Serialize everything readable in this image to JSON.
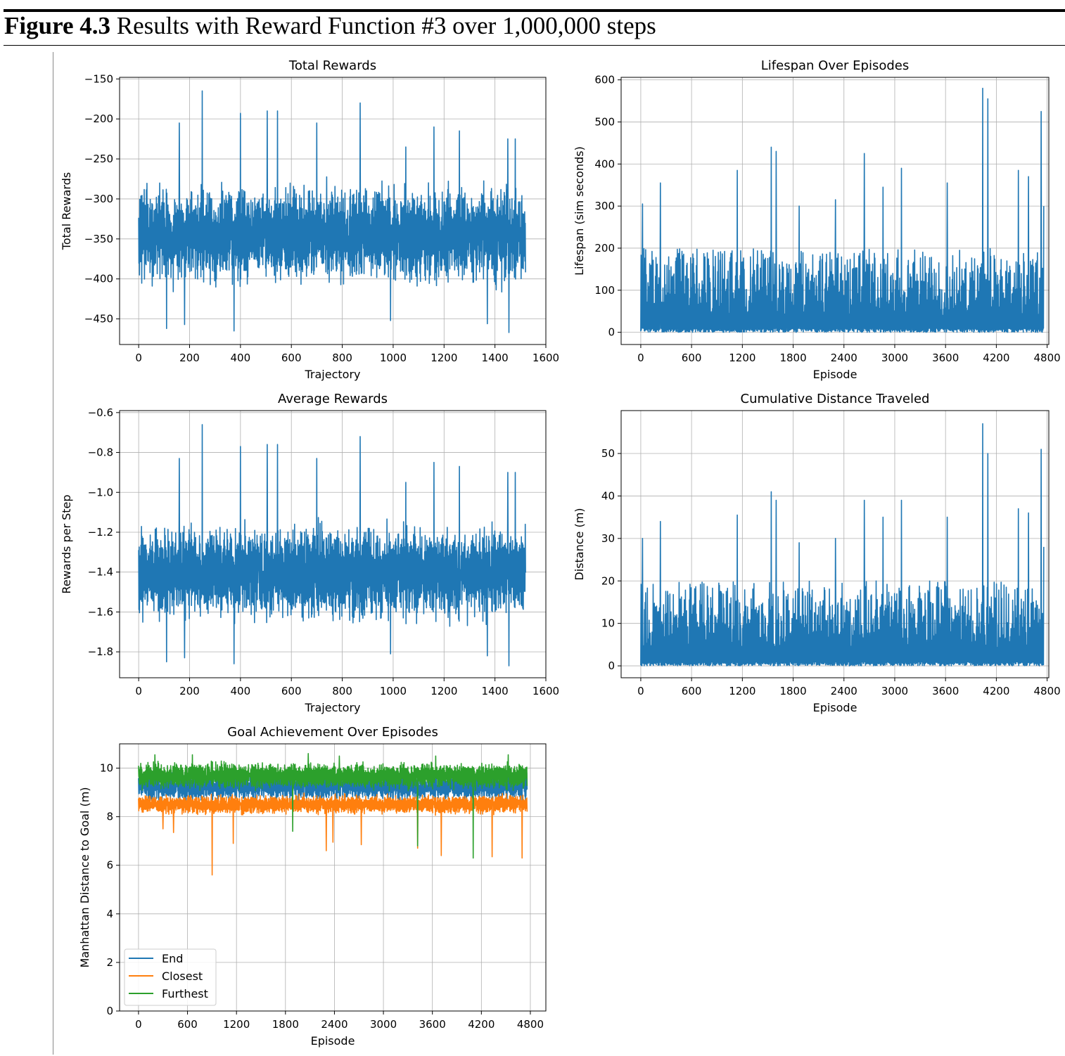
{
  "figure": {
    "label": "Figure 4.3",
    "caption": "Results with Reward Function #3 over 1,000,000 steps"
  },
  "colors": {
    "blue": "#1f77b4",
    "orange": "#ff7f0e",
    "green": "#2ca02c"
  },
  "chart_data": [
    {
      "id": "total",
      "type": "line",
      "title": "Total Rewards",
      "xlabel": "Trajectory",
      "ylabel": "Total Rewards",
      "xlim": [
        -75,
        1600
      ],
      "ylim": [
        -482,
        -148
      ],
      "xticks": [
        0,
        200,
        400,
        600,
        800,
        1000,
        1200,
        1400,
        1600
      ],
      "xtick_labels": [
        "0",
        "200",
        "400",
        "600",
        "800",
        "1000",
        "1200",
        "1400",
        "1600"
      ],
      "yticks": [
        -150,
        -200,
        -250,
        -300,
        -350,
        -400,
        -450
      ],
      "ytick_labels": [
        "−150",
        "−200",
        "−250",
        "−300",
        "−350",
        "−400",
        "−450"
      ],
      "grid": true,
      "series": [
        {
          "color": "#1f77b4",
          "x_range": [
            0,
            1520
          ],
          "typical_range": [
            -420,
            -270
          ],
          "peaks": [
            [
              160,
              -205
            ],
            [
              250,
              -165
            ],
            [
              400,
              -193
            ],
            [
              505,
              -190
            ],
            [
              545,
              -190
            ],
            [
              700,
              -205
            ],
            [
              870,
              -180
            ],
            [
              1050,
              -235
            ],
            [
              1160,
              -210
            ],
            [
              1260,
              -215
            ],
            [
              1450,
              -225
            ],
            [
              1480,
              -225
            ]
          ],
          "troughs": [
            [
              110,
              -462
            ],
            [
              180,
              -457
            ],
            [
              375,
              -465
            ],
            [
              990,
              -452
            ],
            [
              1370,
              -456
            ],
            [
              1455,
              -467
            ]
          ]
        }
      ]
    },
    {
      "id": "lifespan",
      "type": "line",
      "title": "Lifespan Over Episodes",
      "xlabel": "Episode",
      "ylabel": "Lifespan (sim seconds)",
      "xlim": [
        -232,
        4820
      ],
      "ylim": [
        -29,
        606
      ],
      "xticks": [
        0,
        600,
        1200,
        1800,
        2400,
        3000,
        3600,
        4200,
        4800
      ],
      "xtick_labels": [
        "0",
        "600",
        "1200",
        "1800",
        "2400",
        "3000",
        "3600",
        "4200",
        "4800"
      ],
      "yticks": [
        0,
        100,
        200,
        300,
        400,
        500,
        600
      ],
      "ytick_labels": [
        "0",
        "100",
        "200",
        "300",
        "400",
        "500",
        "600"
      ],
      "grid": true,
      "series": [
        {
          "color": "#1f77b4",
          "x_range": [
            0,
            4760
          ],
          "typical_range": [
            0,
            200
          ],
          "peaks": [
            [
              20,
              305
            ],
            [
              230,
              355
            ],
            [
              1140,
              385
            ],
            [
              1540,
              440
            ],
            [
              1600,
              430
            ],
            [
              1870,
              300
            ],
            [
              2300,
              315
            ],
            [
              2640,
              425
            ],
            [
              2860,
              345
            ],
            [
              3080,
              390
            ],
            [
              3620,
              355
            ],
            [
              4040,
              580
            ],
            [
              4100,
              555
            ],
            [
              4460,
              385
            ],
            [
              4580,
              370
            ],
            [
              4730,
              525
            ],
            [
              4760,
              300
            ]
          ],
          "troughs": []
        }
      ]
    },
    {
      "id": "average",
      "type": "line",
      "title": "Average Rewards",
      "xlabel": "Trajectory",
      "ylabel": "Rewards per Step",
      "xlim": [
        -75,
        1600
      ],
      "ylim": [
        -1.93,
        -0.59
      ],
      "xticks": [
        0,
        200,
        400,
        600,
        800,
        1000,
        1200,
        1400,
        1600
      ],
      "xtick_labels": [
        "0",
        "200",
        "400",
        "600",
        "800",
        "1000",
        "1200",
        "1400",
        "1600"
      ],
      "yticks": [
        -0.6,
        -0.8,
        -1.0,
        -1.2,
        -1.4,
        -1.6,
        -1.8
      ],
      "ytick_labels": [
        "−0.6",
        "−0.8",
        "−1.0",
        "−1.2",
        "−1.4",
        "−1.6",
        "−1.8"
      ],
      "grid": true,
      "series": [
        {
          "color": "#1f77b4",
          "x_range": [
            0,
            1520
          ],
          "typical_range": [
            -1.7,
            -1.1
          ],
          "peaks": [
            [
              160,
              -0.83
            ],
            [
              250,
              -0.66
            ],
            [
              400,
              -0.77
            ],
            [
              505,
              -0.76
            ],
            [
              545,
              -0.76
            ],
            [
              700,
              -0.83
            ],
            [
              870,
              -0.72
            ],
            [
              1050,
              -0.95
            ],
            [
              1160,
              -0.85
            ],
            [
              1260,
              -0.87
            ],
            [
              1450,
              -0.9
            ],
            [
              1480,
              -0.9
            ]
          ],
          "troughs": [
            [
              110,
              -1.85
            ],
            [
              180,
              -1.83
            ],
            [
              375,
              -1.86
            ],
            [
              990,
              -1.81
            ],
            [
              1370,
              -1.82
            ],
            [
              1455,
              -1.87
            ]
          ]
        }
      ]
    },
    {
      "id": "distance",
      "type": "line",
      "title": "Cumulative Distance Traveled",
      "xlabel": "Episode",
      "ylabel": "Distance (m)",
      "xlim": [
        -232,
        4820
      ],
      "ylim": [
        -2.8,
        60.1
      ],
      "xticks": [
        0,
        600,
        1200,
        1800,
        2400,
        3000,
        3600,
        4200,
        4800
      ],
      "xtick_labels": [
        "0",
        "600",
        "1200",
        "1800",
        "2400",
        "3000",
        "3600",
        "4200",
        "4800"
      ],
      "yticks": [
        0,
        10,
        20,
        30,
        40,
        50
      ],
      "ytick_labels": [
        "0",
        "10",
        "20",
        "30",
        "40",
        "50"
      ],
      "grid": true,
      "series": [
        {
          "color": "#1f77b4",
          "x_range": [
            0,
            4760
          ],
          "typical_range": [
            0,
            20
          ],
          "peaks": [
            [
              20,
              30
            ],
            [
              230,
              34
            ],
            [
              1140,
              35.5
            ],
            [
              1540,
              41
            ],
            [
              1600,
              39
            ],
            [
              1870,
              29
            ],
            [
              2300,
              30
            ],
            [
              2640,
              39
            ],
            [
              2860,
              35
            ],
            [
              3080,
              39
            ],
            [
              3620,
              35
            ],
            [
              4040,
              57
            ],
            [
              4100,
              50
            ],
            [
              4460,
              37
            ],
            [
              4580,
              36
            ],
            [
              4730,
              51
            ],
            [
              4760,
              28
            ]
          ],
          "troughs": []
        }
      ]
    },
    {
      "id": "goal",
      "type": "line",
      "title": "Goal Achievement Over Episodes",
      "xlabel": "Episode",
      "ylabel": "Manhattan Distance to Goal (m)",
      "xlim": [
        -232,
        4990
      ],
      "ylim": [
        0,
        11.0
      ],
      "xticks": [
        0,
        600,
        1200,
        1800,
        2400,
        3000,
        3600,
        4200,
        4800
      ],
      "xtick_labels": [
        "0",
        "600",
        "1200",
        "1800",
        "2400",
        "3000",
        "3600",
        "4200",
        "4800"
      ],
      "yticks": [
        0,
        2,
        4,
        6,
        8,
        10
      ],
      "ytick_labels": [
        "0",
        "2",
        "4",
        "6",
        "8",
        "10"
      ],
      "grid": true,
      "legend": {
        "placement": "lower-left",
        "entries": [
          "End",
          "Closest",
          "Furthest"
        ]
      },
      "series": [
        {
          "name": "End",
          "color": "#1f77b4",
          "x_range": [
            0,
            4760
          ],
          "typical_range": [
            8.5,
            10.0
          ],
          "peaks": [],
          "troughs": []
        },
        {
          "name": "Closest",
          "color": "#ff7f0e",
          "x_range": [
            0,
            4760
          ],
          "typical_range": [
            8.0,
            9.0
          ],
          "peaks": [],
          "troughs": [
            [
              300,
              7.5
            ],
            [
              430,
              7.35
            ],
            [
              900,
              5.6
            ],
            [
              1160,
              6.9
            ],
            [
              2300,
              6.6
            ],
            [
              2380,
              6.95
            ],
            [
              2730,
              6.85
            ],
            [
              3420,
              6.7
            ],
            [
              3710,
              6.4
            ],
            [
              4330,
              6.35
            ],
            [
              4700,
              6.3
            ]
          ]
        },
        {
          "name": "Furthest",
          "color": "#2ca02c",
          "x_range": [
            0,
            4760
          ],
          "typical_range": [
            9.0,
            10.35
          ],
          "peaks": [
            [
              200,
              10.55
            ],
            [
              660,
              10.55
            ],
            [
              2080,
              10.6
            ],
            [
              2460,
              10.5
            ],
            [
              3640,
              10.5
            ],
            [
              4530,
              10.55
            ]
          ],
          "troughs": [
            [
              1890,
              7.4
            ],
            [
              3420,
              6.8
            ],
            [
              4100,
              6.3
            ]
          ]
        }
      ]
    }
  ]
}
